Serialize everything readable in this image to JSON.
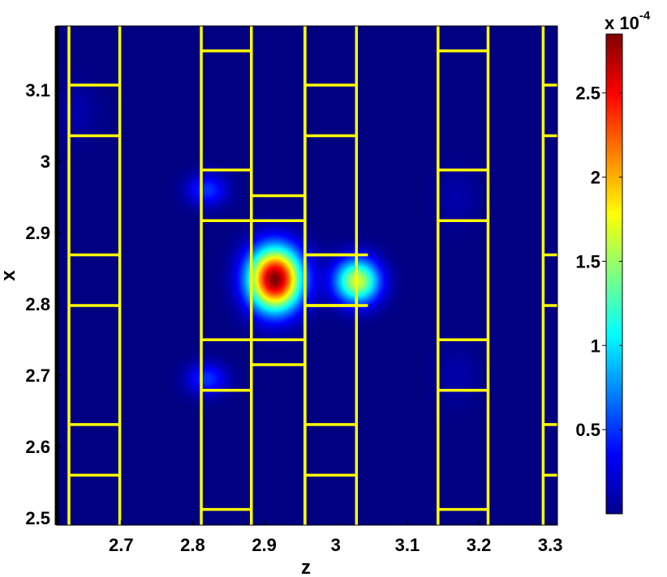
{
  "chart_data": {
    "type": "heatmap",
    "title": "",
    "xlabel": "z",
    "ylabel": "x",
    "xlim": [
      2.61,
      3.31
    ],
    "ylim": [
      2.49,
      3.19
    ],
    "x_ticks": [
      2.7,
      2.8,
      2.9,
      3,
      3.1,
      3.2,
      3.3
    ],
    "x_tick_labels": [
      "2.7",
      "2.8",
      "2.9",
      "3",
      "3.1",
      "3.2",
      "3.3"
    ],
    "y_ticks": [
      2.5,
      2.6,
      2.7,
      2.8,
      2.9,
      3,
      3.1
    ],
    "y_tick_labels": [
      "2.5",
      "2.6",
      "2.7",
      "2.8",
      "2.9",
      "3",
      "3.1"
    ],
    "colormap": "jet",
    "background_color": "#00008f",
    "grid": false,
    "colorbar": {
      "min": 0,
      "max": 0.000285,
      "exponent_label": "x 10",
      "exponent": "-4",
      "ticks": [
        5e-05,
        0.0001,
        0.00015,
        0.0002,
        0.00025
      ],
      "tick_labels": [
        "0.5",
        "1",
        "1.5",
        "2",
        "2.5"
      ]
    },
    "peaks": [
      {
        "z": 2.915,
        "x": 2.835,
        "value": 0.000285,
        "sigma_z": 0.026,
        "sigma_x": 0.031
      },
      {
        "z": 3.03,
        "x": 2.832,
        "value": 0.000165,
        "sigma_z": 0.022,
        "sigma_x": 0.022
      },
      {
        "z": 2.82,
        "x": 2.96,
        "value": 5e-05,
        "sigma_z": 0.02,
        "sigma_x": 0.016
      },
      {
        "z": 2.82,
        "x": 2.695,
        "value": 5e-05,
        "sigma_z": 0.02,
        "sigma_x": 0.016
      },
      {
        "z": 2.64,
        "x": 3.07,
        "value": 1.2e-05,
        "sigma_z": 0.02,
        "sigma_x": 0.03
      },
      {
        "z": 3.17,
        "x": 2.95,
        "value": 1.2e-05,
        "sigma_z": 0.02,
        "sigma_x": 0.03
      },
      {
        "z": 3.17,
        "x": 2.7,
        "value": 1.2e-05,
        "sigma_z": 0.02,
        "sigma_x": 0.03
      }
    ],
    "structure_color": "#ffff00",
    "structure_columns": [
      {
        "z0": 2.627,
        "z1": 2.698,
        "hlines": [
          3.107,
          3.036,
          2.869,
          2.798,
          2.631,
          2.56
        ]
      },
      {
        "z0": 2.812,
        "z1": 2.882,
        "hlines": [
          3.155,
          2.988,
          2.917,
          2.75,
          2.679,
          2.512
        ]
      },
      {
        "z0": 2.882,
        "z1": 2.957,
        "hlines": [
          2.952,
          2.917,
          2.75,
          2.715
        ]
      },
      {
        "z0": 2.957,
        "z1": 3.029,
        "hlines": [
          3.107,
          3.036,
          2.869,
          2.798,
          2.631,
          2.56
        ]
      },
      {
        "z0": 3.143,
        "z1": 3.213,
        "hlines": [
          3.155,
          2.988,
          2.917,
          2.75,
          2.679,
          2.512
        ]
      },
      {
        "z0": 3.29,
        "z1": 3.34,
        "hlines": [
          3.107,
          3.036,
          2.869,
          2.798,
          2.631,
          2.56
        ]
      }
    ],
    "structure_bars": [
      {
        "z0": 2.957,
        "z1": 3.045,
        "x0": 2.798,
        "x1": 2.869
      }
    ]
  }
}
